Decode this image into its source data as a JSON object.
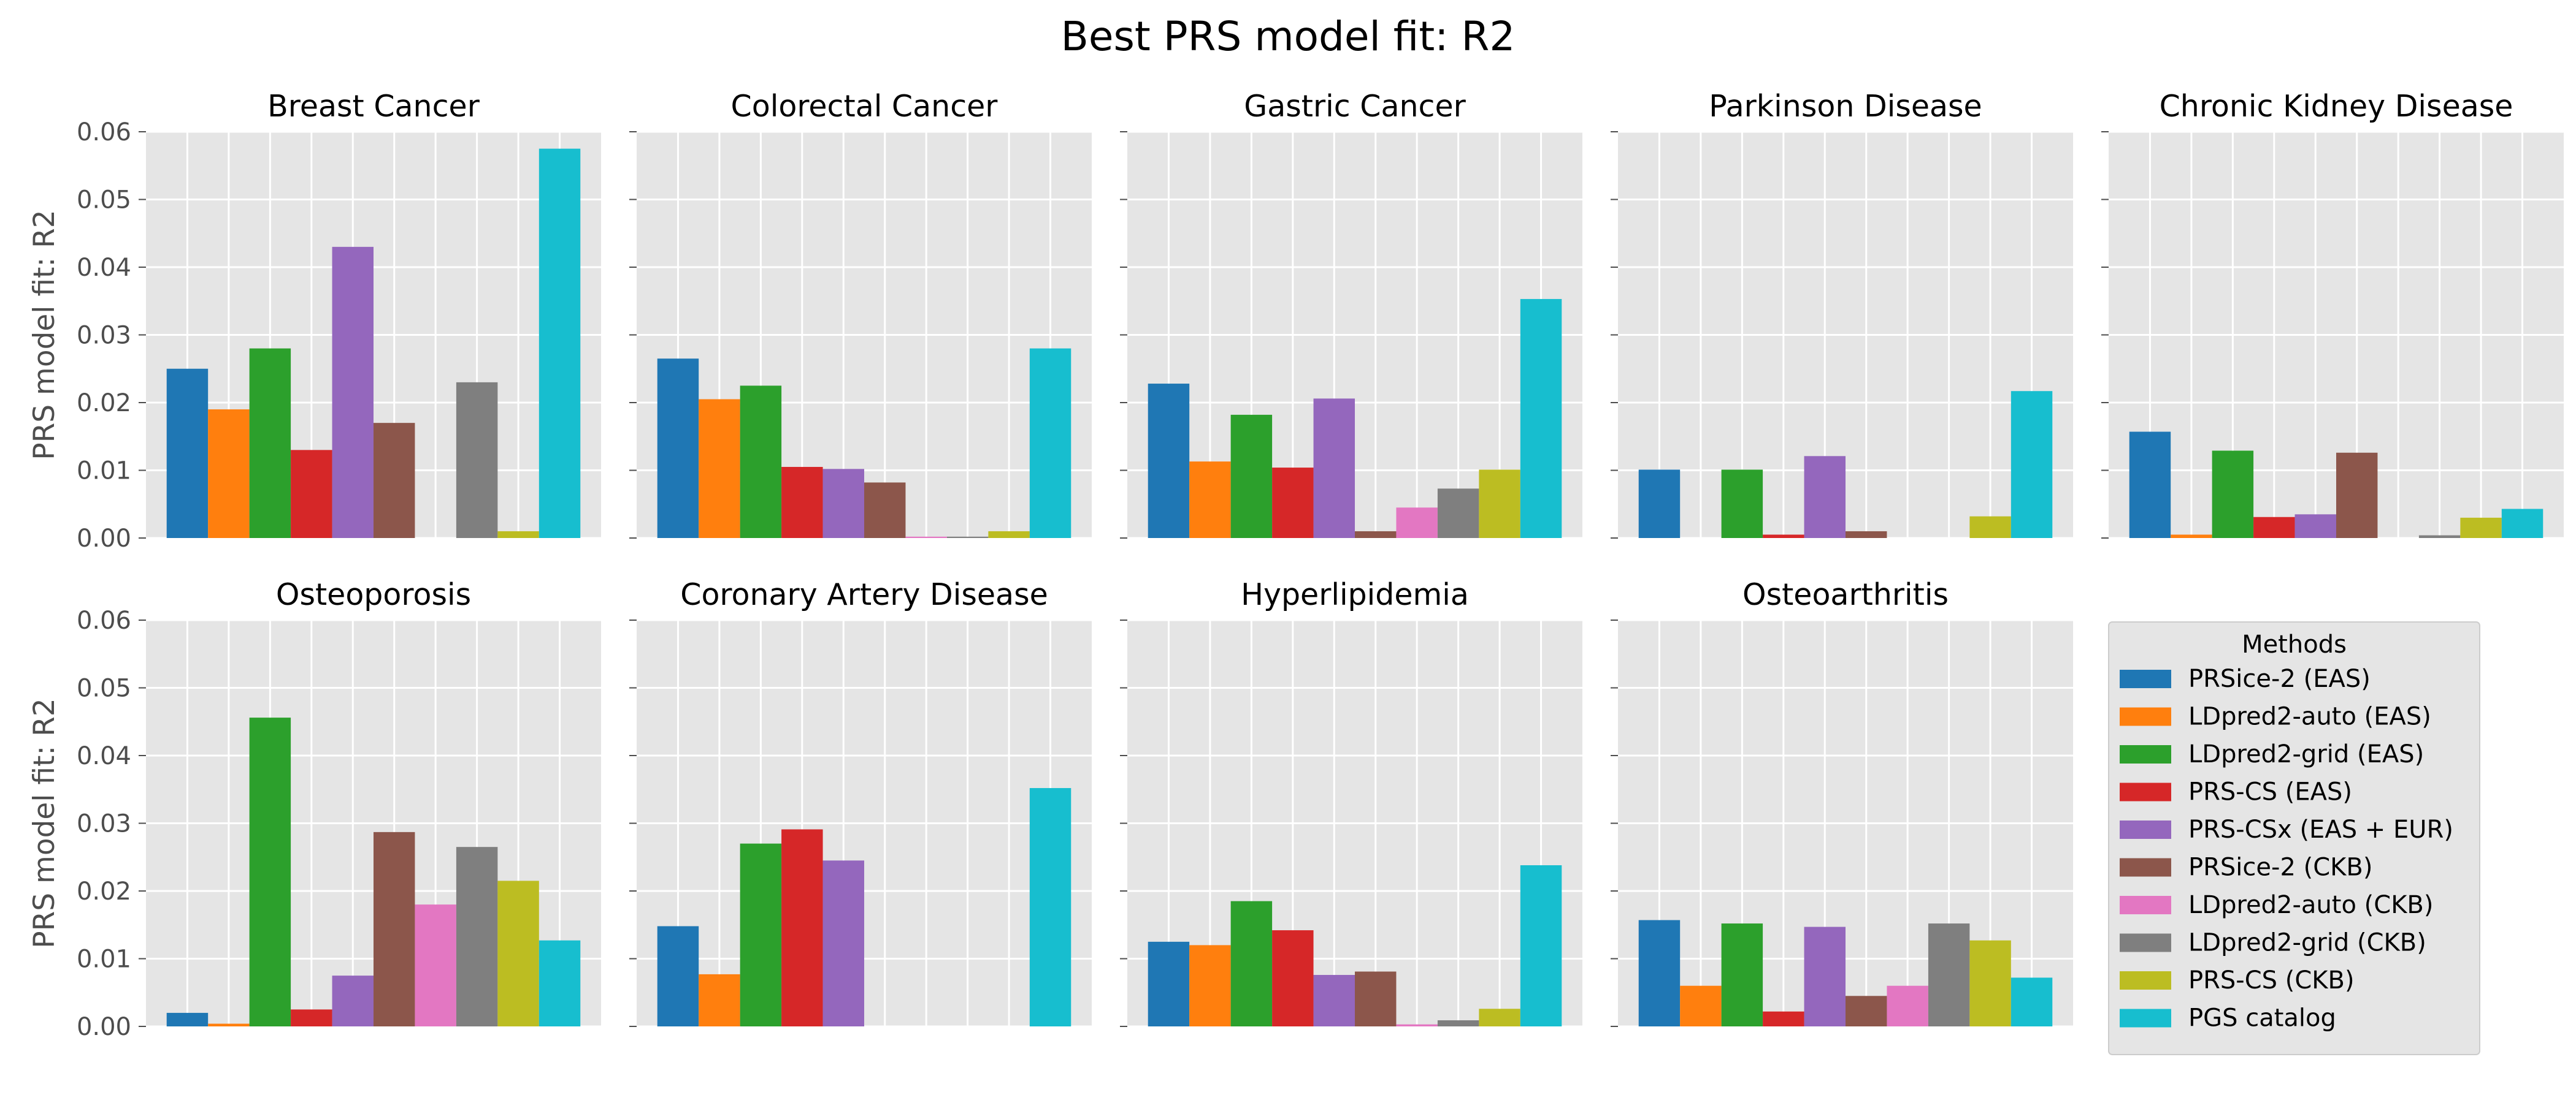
{
  "figure_title": "Best PRS model fit: R2",
  "chart_data": {
    "type": "bar",
    "title": "Best PRS model fit: R2",
    "ylabel": "PRS model fit: R2",
    "ylim": [
      0,
      0.06
    ],
    "yticks": [
      "0.00",
      "0.01",
      "0.02",
      "0.03",
      "0.04",
      "0.05",
      "0.06"
    ],
    "grid": true,
    "legend": {
      "title": "Methods",
      "placement": "bottom-right",
      "entries": [
        {
          "name": "PRSice-2 (EAS)",
          "color": "#1f77b4"
        },
        {
          "name": "LDpred2-auto (EAS)",
          "color": "#ff7f0e"
        },
        {
          "name": "LDpred2-grid (EAS)",
          "color": "#2ca02c"
        },
        {
          "name": "PRS-CS (EAS)",
          "color": "#d62728"
        },
        {
          "name": "PRS-CSx (EAS + EUR)",
          "color": "#9467bd"
        },
        {
          "name": "PRSice-2 (CKB)",
          "color": "#8c564b"
        },
        {
          "name": "LDpred2-auto (CKB)",
          "color": "#e377c2"
        },
        {
          "name": "LDpred2-grid (CKB)",
          "color": "#7f7f7f"
        },
        {
          "name": "PRS-CS (CKB)",
          "color": "#bcbd22"
        },
        {
          "name": "PGS catalog",
          "color": "#17becf"
        }
      ]
    },
    "panels": [
      {
        "title": "Breast Cancer",
        "values": [
          0.025,
          0.019,
          0.028,
          0.013,
          0.043,
          0.017,
          0.0,
          0.023,
          0.001,
          0.0575
        ]
      },
      {
        "title": "Colorectal Cancer",
        "values": [
          0.0265,
          0.0205,
          0.0225,
          0.0105,
          0.0102,
          0.0082,
          0.0002,
          0.0002,
          0.001,
          0.028
        ]
      },
      {
        "title": "Gastric Cancer",
        "values": [
          0.0228,
          0.0113,
          0.0182,
          0.0104,
          0.0206,
          0.001,
          0.0045,
          0.0073,
          0.0101,
          0.0353
        ]
      },
      {
        "title": "Parkinson Disease",
        "values": [
          0.0101,
          0.0,
          0.0101,
          0.0005,
          0.0121,
          0.001,
          0.0,
          0.0,
          0.0032,
          0.0217
        ]
      },
      {
        "title": "Chronic Kidney Disease",
        "values": [
          0.0157,
          0.0005,
          0.0129,
          0.0031,
          0.0035,
          0.0126,
          0.0,
          0.0004,
          0.003,
          0.0043
        ]
      },
      {
        "title": "Osteoporosis",
        "values": [
          0.002,
          0.0004,
          0.0456,
          0.0025,
          0.0075,
          0.0287,
          0.018,
          0.0265,
          0.0215,
          0.0127
        ]
      },
      {
        "title": "Coronary Artery Disease",
        "values": [
          0.0148,
          0.0077,
          0.027,
          0.0291,
          0.0245,
          0.0,
          0.0,
          0.0,
          0.0,
          0.0352
        ]
      },
      {
        "title": "Hyperlipidemia",
        "values": [
          0.0125,
          0.012,
          0.0185,
          0.0142,
          0.0076,
          0.0081,
          0.0003,
          0.0009,
          0.0026,
          0.0238
        ]
      },
      {
        "title": "Osteoarthritis",
        "values": [
          0.0157,
          0.006,
          0.0152,
          0.0022,
          0.0147,
          0.0045,
          0.006,
          0.0152,
          0.0127,
          0.0072
        ]
      }
    ]
  }
}
